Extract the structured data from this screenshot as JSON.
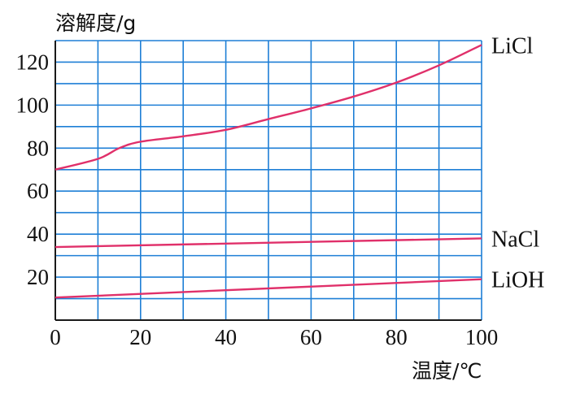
{
  "chart_data": {
    "type": "line",
    "title": "",
    "ylabel": "溶解度/g",
    "xlabel": "温度/℃",
    "xlim": [
      0,
      100
    ],
    "ylim": [
      0,
      130
    ],
    "x_ticks": [
      0,
      20,
      40,
      60,
      80,
      100
    ],
    "y_ticks": [
      20,
      40,
      60,
      80,
      100,
      120
    ],
    "grid": true,
    "grid_x_step": 10,
    "grid_y_step": 10,
    "grid_color": "#1e7fd6",
    "line_color": "#e0306a",
    "series": [
      {
        "name": "LiCl",
        "x": [
          0,
          10,
          15,
          20,
          30,
          40,
          50,
          60,
          70,
          80,
          90,
          100
        ],
        "values": [
          70,
          75,
          80,
          83,
          85.5,
          88.5,
          93.5,
          98.5,
          104,
          110.5,
          118.5,
          128
        ]
      },
      {
        "name": "NaCl",
        "x": [
          0,
          100
        ],
        "values": [
          34,
          38
        ]
      },
      {
        "name": "LiOH",
        "x": [
          0,
          100
        ],
        "values": [
          10.5,
          19
        ]
      }
    ]
  }
}
